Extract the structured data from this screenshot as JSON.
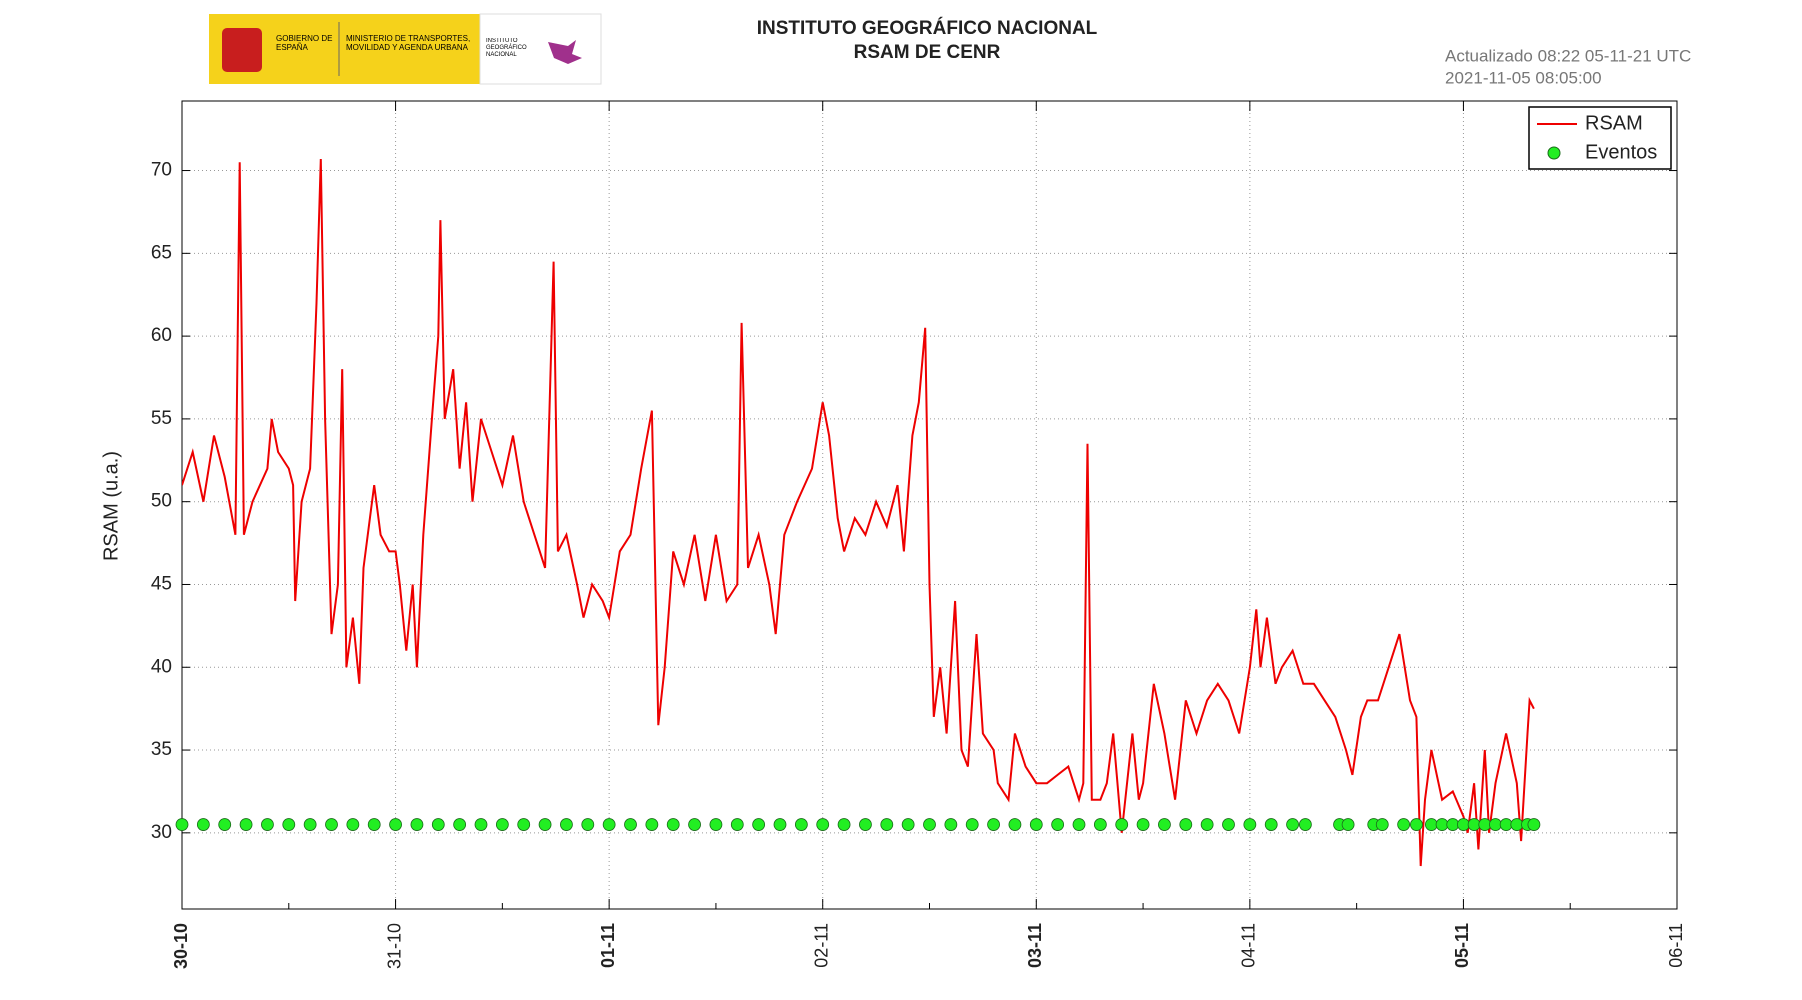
{
  "header": {
    "logo": {
      "gov": "GOBIERNO DE ESPAÑA",
      "ministry": "MINISTERIO DE TRANSPORTES, MOVILIDAD Y AGENDA URBANA",
      "institute": "INSTITUTO GEOGRÁFICO NACIONAL"
    },
    "updated": "Actualizado 08:22 05-11-21 UTC",
    "timestamp": "2021-11-05 08:05:00"
  },
  "chart_data": {
    "type": "line",
    "title": "INSTITUTO GEOGRÁFICO NACIONAL",
    "subtitle": "RSAM DE CENR",
    "y_label": "RSAM (u.a.)",
    "xlim": [
      0,
      7
    ],
    "xticks": [
      {
        "value": 0,
        "label": "30-10"
      },
      {
        "value": 1,
        "label": "31-10"
      },
      {
        "value": 2,
        "label": "01-11"
      },
      {
        "value": 3,
        "label": "02-11"
      },
      {
        "value": 4,
        "label": "03-11"
      },
      {
        "value": 5,
        "label": "04-11"
      },
      {
        "value": 6,
        "label": "05-11"
      },
      {
        "value": 7,
        "label": "06-11"
      }
    ],
    "ylim": [
      25.4,
      74.2
    ],
    "yticks": [
      30,
      35,
      40,
      45,
      50,
      55,
      60,
      65,
      70
    ],
    "grid": true,
    "legend": "upper right",
    "series": [
      {
        "name": "RSAM",
        "color": "#ee0000",
        "x": [
          0,
          0.05,
          0.1,
          0.15,
          0.2,
          0.25,
          0.27,
          0.29,
          0.33,
          0.4,
          0.42,
          0.45,
          0.5,
          0.52,
          0.53,
          0.56,
          0.6,
          0.63,
          0.65,
          0.67,
          0.7,
          0.73,
          0.75,
          0.77,
          0.8,
          0.83,
          0.85,
          0.88,
          0.9,
          0.93,
          0.97,
          1.0,
          1.02,
          1.05,
          1.08,
          1.1,
          1.13,
          1.17,
          1.2,
          1.21,
          1.23,
          1.27,
          1.3,
          1.33,
          1.36,
          1.4,
          1.45,
          1.5,
          1.55,
          1.6,
          1.65,
          1.7,
          1.74,
          1.76,
          1.8,
          1.85,
          1.88,
          1.92,
          1.97,
          2.0,
          2.05,
          2.1,
          2.15,
          2.2,
          2.23,
          2.26,
          2.3,
          2.35,
          2.4,
          2.45,
          2.5,
          2.55,
          2.6,
          2.62,
          2.65,
          2.7,
          2.75,
          2.78,
          2.82,
          2.88,
          2.95,
          3.0,
          3.03,
          3.07,
          3.1,
          3.15,
          3.2,
          3.25,
          3.3,
          3.35,
          3.38,
          3.42,
          3.45,
          3.48,
          3.5,
          3.52,
          3.55,
          3.58,
          3.62,
          3.65,
          3.68,
          3.72,
          3.75,
          3.8,
          3.82,
          3.87,
          3.9,
          3.95,
          4.0,
          4.05,
          4.1,
          4.15,
          4.2,
          4.22,
          4.24,
          4.26,
          4.3,
          4.33,
          4.36,
          4.4,
          4.45,
          4.48,
          4.5,
          4.55,
          4.6,
          4.65,
          4.7,
          4.75,
          4.8,
          4.85,
          4.9,
          4.95,
          5.0,
          5.03,
          5.05,
          5.08,
          5.12,
          5.15,
          5.2,
          5.25,
          5.3,
          5.35,
          5.4,
          5.45,
          5.48,
          5.52,
          5.55,
          5.6,
          5.65,
          5.7,
          5.75,
          5.78,
          5.8,
          5.82,
          5.85,
          5.9,
          5.95,
          6.0,
          6.02,
          6.05,
          6.07,
          6.1,
          6.12,
          6.15,
          6.2,
          6.25,
          6.27,
          6.3,
          6.31,
          6.33
        ],
        "values": [
          51,
          53,
          50,
          54,
          51.5,
          48,
          70.5,
          48,
          50,
          52,
          55,
          53,
          52,
          51,
          44,
          50,
          52,
          62,
          70.7,
          55,
          42,
          45,
          58,
          40,
          43,
          39,
          46,
          49,
          51,
          48,
          47,
          47,
          45,
          41,
          45,
          40,
          48,
          55,
          60,
          67,
          55,
          58,
          52,
          56,
          50,
          55,
          53,
          51,
          54,
          50,
          48,
          46,
          64.5,
          47,
          48,
          45,
          43,
          45,
          44,
          43,
          47,
          48,
          52,
          55.5,
          36.5,
          40,
          47,
          45,
          48,
          44,
          48,
          44,
          45,
          60.8,
          46,
          48,
          45,
          42,
          48,
          50,
          52,
          56,
          54,
          49,
          47,
          49,
          48,
          50,
          48.5,
          51,
          47,
          54,
          56,
          60.5,
          45,
          37,
          40,
          36,
          44,
          35,
          34,
          42,
          36,
          35,
          33,
          32,
          36,
          34,
          33,
          33,
          33.5,
          34,
          32,
          33,
          53.5,
          32,
          32,
          33,
          36,
          30,
          36,
          32,
          33,
          39,
          36,
          32,
          38,
          36,
          38,
          39,
          38,
          36,
          40,
          43.5,
          40,
          43,
          39,
          40,
          41,
          39,
          39,
          38,
          37,
          35,
          33.5,
          37,
          38,
          38,
          40,
          42,
          38,
          37,
          28,
          32,
          35,
          32,
          32.5,
          31,
          30,
          33,
          29,
          35,
          30,
          33,
          36,
          33,
          29.5,
          36,
          38,
          37.5
        ]
      },
      {
        "name": "Eventos",
        "color": "#22ee22",
        "mode": "markers",
        "x": [
          0,
          0.1,
          0.2,
          0.3,
          0.4,
          0.5,
          0.6,
          0.7,
          0.8,
          0.9,
          1.0,
          1.1,
          1.2,
          1.3,
          1.4,
          1.5,
          1.6,
          1.7,
          1.8,
          1.9,
          2.0,
          2.1,
          2.2,
          2.3,
          2.4,
          2.5,
          2.6,
          2.7,
          2.8,
          2.9,
          3.0,
          3.1,
          3.2,
          3.3,
          3.4,
          3.5,
          3.6,
          3.7,
          3.8,
          3.9,
          4.0,
          4.1,
          4.2,
          4.3,
          4.4,
          4.5,
          4.6,
          4.7,
          4.8,
          4.9,
          5.0,
          5.1,
          5.2,
          5.26,
          5.42,
          5.46,
          5.58,
          5.62,
          5.72,
          5.78,
          5.85,
          5.9,
          5.95,
          6.0,
          6.05,
          6.1,
          6.15,
          6.2,
          6.25,
          6.3,
          6.33
        ],
        "values": [
          30.5,
          30.5,
          30.5,
          30.5,
          30.5,
          30.5,
          30.5,
          30.5,
          30.5,
          30.5,
          30.5,
          30.5,
          30.5,
          30.5,
          30.5,
          30.5,
          30.5,
          30.5,
          30.5,
          30.5,
          30.5,
          30.5,
          30.5,
          30.5,
          30.5,
          30.5,
          30.5,
          30.5,
          30.5,
          30.5,
          30.5,
          30.5,
          30.5,
          30.5,
          30.5,
          30.5,
          30.5,
          30.5,
          30.5,
          30.5,
          30.5,
          30.5,
          30.5,
          30.5,
          30.5,
          30.5,
          30.5,
          30.5,
          30.5,
          30.5,
          30.5,
          30.5,
          30.5,
          30.5,
          30.5,
          30.5,
          30.5,
          30.5,
          30.5,
          30.5,
          30.5,
          30.5,
          30.5,
          30.5,
          30.5,
          30.5,
          30.5,
          30.5,
          30.5,
          30.5,
          30.5
        ]
      }
    ]
  }
}
